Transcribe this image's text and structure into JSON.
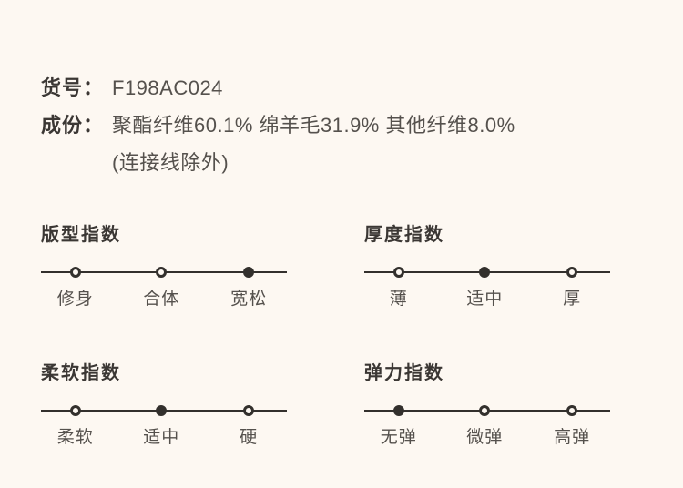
{
  "theme": {
    "background": "#fdf8f2",
    "heading_color": "#3b3734",
    "text_color": "#55514d",
    "track_color": "#33302d"
  },
  "product": {
    "item_no_label": "货号：",
    "item_no_value": "F198AC024",
    "composition_label": "成份：",
    "composition_value": "聚酯纤维60.1% 绵羊毛31.9% 其他纤维8.0%",
    "composition_note": "(连接线除外)"
  },
  "indexes": [
    {
      "id": "fit",
      "title": "版型指数",
      "options": [
        "修身",
        "合体",
        "宽松"
      ],
      "selected": 2
    },
    {
      "id": "thickness",
      "title": "厚度指数",
      "options": [
        "薄",
        "适中",
        "厚"
      ],
      "selected": 1
    },
    {
      "id": "softness",
      "title": "柔软指数",
      "options": [
        "柔软",
        "适中",
        "硬"
      ],
      "selected": 1
    },
    {
      "id": "stretch",
      "title": "弹力指数",
      "options": [
        "无弹",
        "微弹",
        "高弹"
      ],
      "selected": 0
    }
  ]
}
